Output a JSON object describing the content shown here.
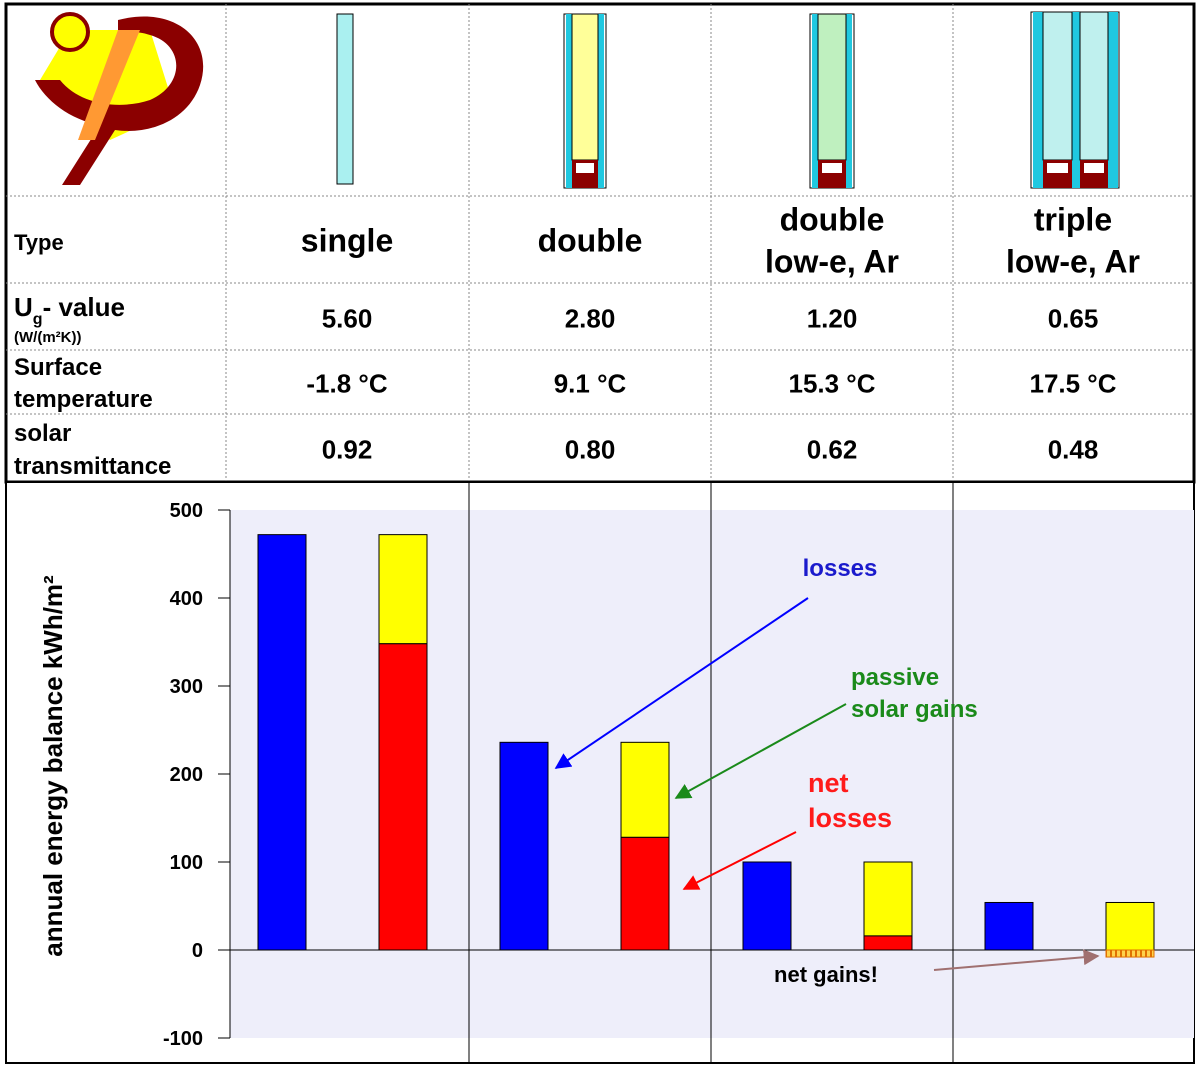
{
  "table": {
    "columns": [
      "single",
      "double",
      "double\nlow-e, Ar",
      "triple\nlow-e, Ar"
    ],
    "rows": [
      {
        "label_main": "Type",
        "label_sub": "",
        "label_unit": "",
        "values": [
          "single",
          "double",
          "double\nlow-e, Ar",
          "triple\nlow-e, Ar"
        ]
      },
      {
        "label_main": "U",
        "label_sub": "g",
        "label_rest": "- value",
        "label_unit": "(W/(m²K))",
        "values": [
          "5.60",
          "2.80",
          "1.20",
          "0.65"
        ]
      },
      {
        "label_main": "Surface\ntemperature",
        "label_unit": "",
        "values": [
          "-1.8 °C",
          "9.1  °C",
          "15.3  °C",
          "17.5  °C"
        ]
      },
      {
        "label_main": "solar\ntransmittance",
        "label_unit": "",
        "values": [
          "0.92",
          "0.80",
          "0.62",
          "0.48"
        ]
      }
    ]
  },
  "chart_data": {
    "type": "bar",
    "title": "",
    "ylabel": "annual energy balance kWh/m²",
    "xlabel": "",
    "ylim": [
      -100,
      500
    ],
    "yticks": [
      500,
      400,
      300,
      200,
      100,
      0,
      -100
    ],
    "grid": false,
    "categories": [
      "single",
      "double",
      "double low-e, Ar",
      "triple low-e, Ar"
    ],
    "series": [
      {
        "name": "losses",
        "values": [
          472,
          236,
          100,
          54
        ]
      },
      {
        "name": "passive solar gains",
        "values": [
          124,
          108,
          84,
          62
        ]
      },
      {
        "name": "net losses",
        "values": [
          348,
          128,
          16,
          -8
        ]
      }
    ],
    "annotations": {
      "losses": "losses",
      "passive_line1": "passive",
      "passive_line2": "solar gains",
      "net_line1": "net",
      "net_line2": "losses",
      "net_gains": "net gains!"
    },
    "colors": {
      "losses": "#0000ff",
      "gains": "#ffff00",
      "net_losses": "#ff0000",
      "net_gains": "#ff8c00",
      "plot_bg": "#eeeefa",
      "losses_label": "#1a1acc",
      "passive_label": "#1a8a1a",
      "net_label": "#ff1a1a",
      "net_gains_arrow": "#a07070"
    }
  }
}
